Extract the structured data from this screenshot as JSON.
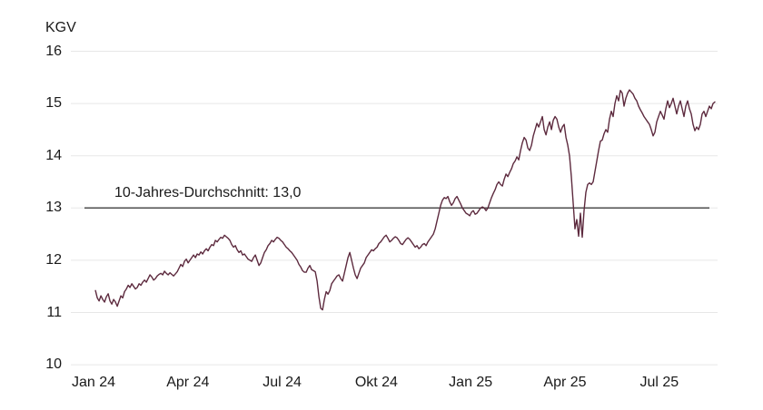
{
  "chart_data": {
    "type": "line",
    "title": "",
    "ylabel": "KGV",
    "xlabel": "",
    "grid": true,
    "y_ticks": [
      10,
      11,
      12,
      13,
      14,
      15,
      16
    ],
    "y_range": [
      10,
      16
    ],
    "x_ticks": [
      {
        "month": 0,
        "label": "Jan 24"
      },
      {
        "month": 3,
        "label": "Apr 24"
      },
      {
        "month": 6,
        "label": "Jul 24"
      },
      {
        "month": 9,
        "label": "Okt 24"
      },
      {
        "month": 12,
        "label": "Jan 25"
      },
      {
        "month": 15,
        "label": "Apr 25"
      },
      {
        "month": 18,
        "label": "Jul 25"
      }
    ],
    "average_line": {
      "value": 13.0,
      "label": "10-Jahres-Durchschnitt: 13,0"
    },
    "colors": {
      "line": "#5d2a3e",
      "average_line": "#4d4d4d",
      "grid": "#e7e7e7",
      "text": "#1a1a1a",
      "background": "#ffffff"
    },
    "series": [
      {
        "name": "KGV",
        "x_start_month": 0.06,
        "x_end_month": 19.77,
        "values": [
          11.42,
          11.28,
          11.22,
          11.32,
          11.25,
          11.2,
          11.3,
          11.36,
          11.22,
          11.16,
          11.25,
          11.2,
          11.12,
          11.22,
          11.32,
          11.28,
          11.4,
          11.45,
          11.52,
          11.48,
          11.55,
          11.5,
          11.45,
          11.48,
          11.55,
          11.52,
          11.58,
          11.62,
          11.58,
          11.65,
          11.72,
          11.68,
          11.62,
          11.65,
          11.7,
          11.73,
          11.75,
          11.72,
          11.79,
          11.75,
          11.72,
          11.76,
          11.73,
          11.7,
          11.74,
          11.78,
          11.85,
          11.92,
          11.88,
          11.98,
          12.02,
          11.95,
          12.0,
          12.05,
          12.1,
          12.05,
          12.12,
          12.1,
          12.16,
          12.12,
          12.18,
          12.22,
          12.18,
          12.25,
          12.3,
          12.28,
          12.38,
          12.35,
          12.4,
          12.44,
          12.42,
          12.48,
          12.45,
          12.42,
          12.38,
          12.3,
          12.25,
          12.28,
          12.2,
          12.15,
          12.18,
          12.1,
          12.12,
          12.07,
          12.02,
          12.0,
          11.98,
          12.05,
          12.1,
          12.0,
          11.9,
          11.95,
          12.05,
          12.15,
          12.2,
          12.28,
          12.32,
          12.38,
          12.35,
          12.4,
          12.44,
          12.42,
          12.38,
          12.35,
          12.3,
          12.25,
          12.22,
          12.18,
          12.15,
          12.1,
          12.05,
          12.0,
          11.92,
          11.87,
          11.8,
          11.77,
          11.77,
          11.85,
          11.9,
          11.82,
          11.8,
          11.78,
          11.6,
          11.3,
          11.08,
          11.05,
          11.25,
          11.4,
          11.35,
          11.42,
          11.55,
          11.6,
          11.65,
          11.7,
          11.72,
          11.65,
          11.6,
          11.75,
          11.9,
          12.05,
          12.15,
          12.0,
          11.85,
          11.72,
          11.65,
          11.75,
          11.85,
          11.9,
          11.95,
          12.05,
          12.1,
          12.15,
          12.2,
          12.18,
          12.22,
          12.25,
          12.32,
          12.35,
          12.4,
          12.45,
          12.48,
          12.42,
          12.35,
          12.38,
          12.42,
          12.45,
          12.43,
          12.38,
          12.32,
          12.3,
          12.35,
          12.4,
          12.43,
          12.4,
          12.35,
          12.3,
          12.25,
          12.28,
          12.22,
          12.25,
          12.3,
          12.32,
          12.28,
          12.35,
          12.4,
          12.45,
          12.5,
          12.6,
          12.75,
          12.9,
          13.05,
          13.15,
          13.2,
          13.18,
          13.22,
          13.12,
          13.05,
          13.1,
          13.18,
          13.22,
          13.15,
          13.08,
          13.0,
          12.95,
          12.9,
          12.88,
          12.85,
          12.92,
          12.95,
          12.88,
          12.9,
          12.95,
          13.0,
          13.02,
          13.0,
          12.95,
          13.0,
          13.1,
          13.2,
          13.28,
          13.35,
          13.45,
          13.5,
          13.45,
          13.42,
          13.55,
          13.65,
          13.6,
          13.68,
          13.75,
          13.85,
          13.9,
          13.98,
          13.92,
          14.1,
          14.25,
          14.35,
          14.3,
          14.15,
          14.1,
          14.2,
          14.38,
          14.5,
          14.62,
          14.55,
          14.65,
          14.75,
          14.5,
          14.4,
          14.55,
          14.65,
          14.5,
          14.68,
          14.75,
          14.7,
          14.55,
          14.45,
          14.55,
          14.6,
          14.35,
          14.2,
          14.0,
          13.6,
          13.1,
          12.6,
          12.78,
          12.46,
          12.9,
          12.44,
          12.95,
          13.3,
          13.45,
          13.48,
          13.45,
          13.5,
          13.7,
          13.9,
          14.1,
          14.28,
          14.3,
          14.42,
          14.5,
          14.45,
          14.7,
          14.85,
          14.75,
          15.0,
          15.15,
          15.05,
          15.25,
          15.2,
          14.95,
          15.1,
          15.2,
          15.26,
          15.22,
          15.18,
          15.1,
          15.05,
          14.95,
          14.88,
          14.82,
          14.75,
          14.7,
          14.65,
          14.6,
          14.5,
          14.38,
          14.45,
          14.65,
          14.75,
          14.85,
          14.78,
          14.7,
          14.9,
          15.05,
          14.92,
          15.0,
          15.1,
          14.95,
          14.8,
          14.95,
          15.05,
          14.9,
          14.75,
          14.95,
          15.05,
          14.9,
          14.8,
          14.6,
          14.48,
          14.55,
          14.5,
          14.6,
          14.8,
          14.85,
          14.75,
          14.85,
          14.95,
          14.9,
          15.0,
          15.03
        ]
      }
    ]
  }
}
